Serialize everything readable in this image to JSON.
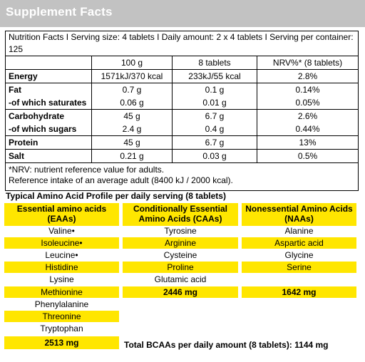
{
  "header": {
    "title": "Supplement Facts"
  },
  "nutrition": {
    "serving_line": "Nutrition Facts I Serving size: 4 tablets I Daily amount: 2 x 4 tablets I Serving per container: 125",
    "columns": [
      "",
      "100 g",
      "8 tablets",
      "NRV%* (8 tablets)"
    ],
    "rows": [
      {
        "label": "Energy",
        "c1": "1571kJ/370 kcal",
        "c2": "233kJ/55 kcal",
        "c3": "2.8%"
      },
      {
        "label": "Fat",
        "c1": "0.7 g",
        "c2": "0.1 g",
        "c3": "0.14%"
      },
      {
        "label": "-of which saturates",
        "c1": "0.06 g",
        "c2": "0.01 g",
        "c3": "0.05%"
      },
      {
        "label": "Carbohydrate",
        "c1": "45 g",
        "c2": "6.7 g",
        "c3": "2.6%"
      },
      {
        "label": "-of which sugars",
        "c1": "2.4 g",
        "c2": "0.4 g",
        "c3": "0.44%"
      },
      {
        "label": "Protein",
        "c1": "45 g",
        "c2": "6.7 g",
        "c3": "13%"
      },
      {
        "label": "Salt",
        "c1": "0.21 g",
        "c2": "0.03 g",
        "c3": "0.5%"
      }
    ],
    "note1": "*NRV: nutrient reference value for adults.",
    "note2": "Reference intake of an average adult (8400 kJ / 2000 kcal)."
  },
  "amino": {
    "title": "Typical Amino Acid Profile per daily serving (8 tablets)",
    "eaa_header": "Essential amino acids (EAAs)",
    "caa_header": "Conditionally Essential Amino Acids (CAAs)",
    "naa_header": "Nonessential Amino Acids (NAAs)",
    "eaa": [
      "Valine•",
      "Isoleucine•",
      "Leucine•",
      "Histidine",
      "Lysine",
      "Methionine",
      "Phenylalanine",
      "Threonine",
      "Tryptophan"
    ],
    "eaa_total": "2513 mg",
    "caa": [
      "Tyrosine",
      "Arginine",
      "Cysteine",
      "Proline",
      "Glutamic acid"
    ],
    "caa_total": "2446 mg",
    "naa": [
      "Alanine",
      "Aspartic acid",
      "Glycine",
      "Serine"
    ],
    "naa_total": "1642 mg",
    "bcaa_total": "Total BCAAs per daily amount (8 tablets): 1144 mg"
  },
  "colors": {
    "header_bg": "#c2c2c2",
    "highlight": "#ffe600"
  }
}
